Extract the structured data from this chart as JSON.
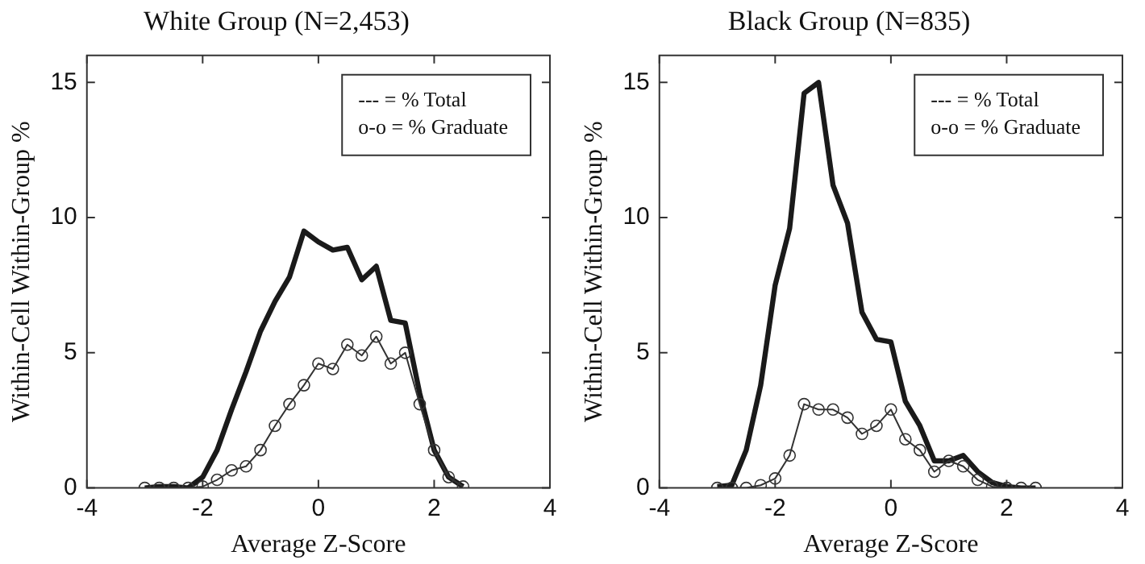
{
  "chart_data": [
    {
      "type": "line",
      "title": "White Group (N=2,453)",
      "xlabel": "Average Z-Score",
      "ylabel": "Within-Cell Within-Group %",
      "annotations": [
        "--- = % Total",
        "o-o = % Graduate"
      ],
      "x": [
        -3,
        -2.75,
        -2.5,
        -2.25,
        -2,
        -1.75,
        -1.5,
        -1.25,
        -1,
        -0.75,
        -0.5,
        -0.25,
        0,
        0.25,
        0.5,
        0.75,
        1,
        1.25,
        1.5,
        1.75,
        2,
        2.25,
        2.5
      ],
      "series": [
        {
          "color": "#1a1a1a",
          "marker": "none",
          "values": [
            0,
            0.05,
            0.05,
            0,
            0.4,
            1.4,
            2.9,
            4.3,
            5.8,
            6.9,
            7.8,
            9.5,
            9.1,
            8.8,
            8.9,
            7.7,
            8.2,
            6.2,
            6.1,
            3.5,
            1.4,
            0.4,
            0.05
          ]
        },
        {
          "color": "#333333",
          "marker": "circle",
          "values": [
            0,
            0,
            0,
            0,
            0.05,
            0.3,
            0.65,
            0.8,
            1.4,
            2.3,
            3.1,
            3.8,
            4.6,
            4.4,
            5.3,
            4.9,
            5.6,
            4.6,
            5,
            3.1,
            1.4,
            0.4,
            0.05
          ]
        }
      ],
      "xlim": [
        -4,
        4
      ],
      "xticks": [
        -4,
        -2,
        0,
        2,
        4
      ],
      "ylim": [
        0,
        16
      ],
      "yticks": [
        0,
        5,
        10,
        15
      ]
    },
    {
      "type": "line",
      "title": "Black Group (N=835)",
      "xlabel": "Average Z-Score",
      "ylabel": "Within-Cell Within-Group %",
      "annotations": [
        "--- = % Total",
        "o-o = % Graduate"
      ],
      "x": [
        -3,
        -2.75,
        -2.5,
        -2.25,
        -2,
        -1.75,
        -1.5,
        -1.25,
        -1,
        -0.75,
        -0.5,
        -0.25,
        0,
        0.25,
        0.5,
        0.75,
        1,
        1.25,
        1.5,
        1.75,
        2,
        2.25,
        2.5
      ],
      "series": [
        {
          "color": "#1a1a1a",
          "marker": "none",
          "values": [
            0.05,
            0.1,
            1.4,
            3.8,
            7.5,
            9.6,
            14.6,
            15,
            11.2,
            9.8,
            6.5,
            5.5,
            5.4,
            3.2,
            2.3,
            1,
            1,
            1.2,
            0.6,
            0.2,
            0.05,
            0,
            0
          ]
        },
        {
          "color": "#333333",
          "marker": "circle",
          "values": [
            0,
            0,
            0,
            0.1,
            0.35,
            1.2,
            3.1,
            2.9,
            2.9,
            2.6,
            2,
            2.3,
            2.9,
            1.8,
            1.4,
            0.6,
            1,
            0.8,
            0.3,
            0.05,
            0,
            0,
            0
          ]
        }
      ],
      "xlim": [
        -4,
        4
      ],
      "xticks": [
        -4,
        -2,
        0,
        2,
        4
      ],
      "ylim": [
        0,
        16
      ],
      "yticks": [
        0,
        5,
        10,
        15
      ]
    }
  ]
}
